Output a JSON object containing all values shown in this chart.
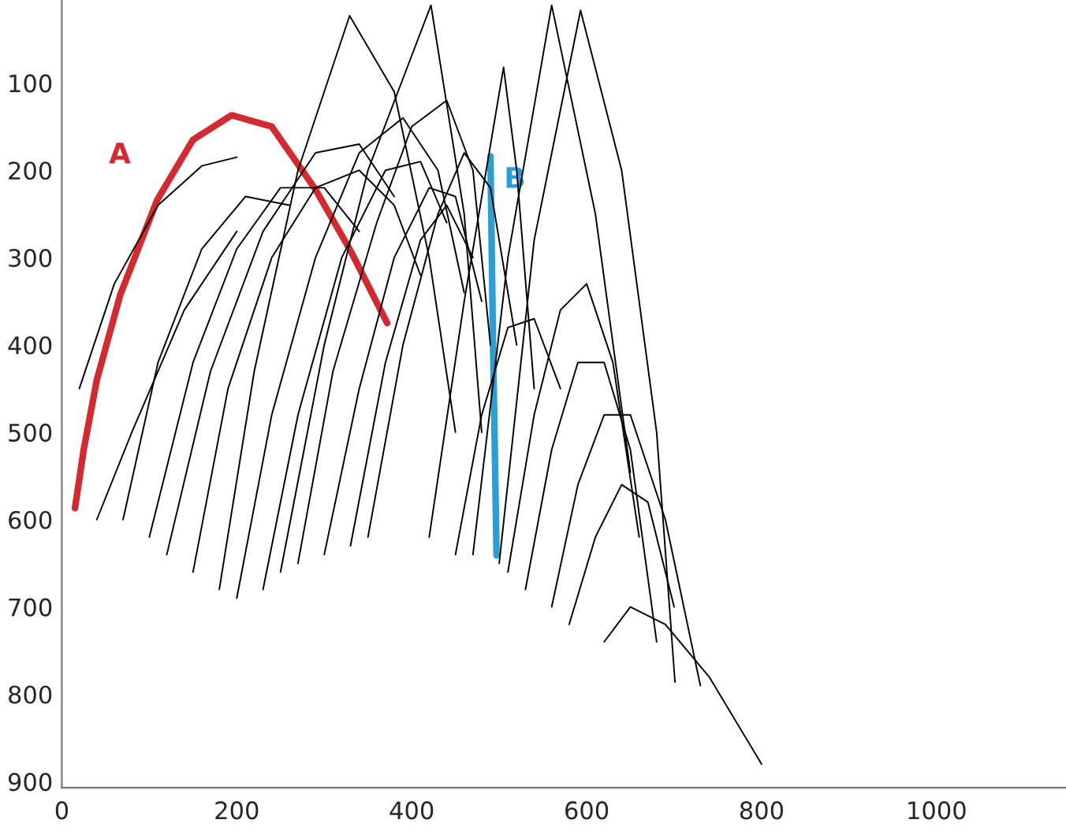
{
  "chart_data": {
    "type": "line",
    "color": "#000000",
    "xlim": [
      0,
      1148
    ],
    "ylim": [
      907,
      5
    ],
    "xticks": [
      0,
      200,
      400,
      600,
      800,
      1000
    ],
    "yticks": [
      100,
      200,
      300,
      400,
      500,
      600,
      700,
      800,
      900
    ],
    "annotations": [
      {
        "text": "A",
        "x": 109,
        "y": 234
      },
      {
        "text": "B",
        "x": 493,
        "y": 262
      }
    ],
    "series": [
      {
        "color": "#d42a2f",
        "x": [
          15,
          25,
          40,
          67,
          109,
          150,
          194,
          240,
          290,
          330,
          372
        ],
        "values": [
          587,
          520,
          440,
          342,
          234,
          165,
          137,
          150,
          222,
          292,
          375
        ]
      },
      {
        "color": "#2a9fd6",
        "x": [
          490,
          493,
          497
        ],
        "values": [
          184,
          400,
          641
        ]
      },
      {
        "x": [
          70,
          110,
          160,
          210,
          260
        ],
        "values": [
          600,
          420,
          290,
          230,
          240
        ]
      },
      {
        "x": [
          20,
          60,
          110,
          160,
          200
        ],
        "values": [
          450,
          330,
          240,
          195,
          185
        ]
      },
      {
        "x": [
          100,
          150,
          200,
          250,
          300,
          340
        ],
        "values": [
          620,
          420,
          290,
          220,
          220,
          270
        ]
      },
      {
        "x": [
          150,
          190,
          240,
          290,
          340,
          380,
          410
        ],
        "values": [
          660,
          450,
          300,
          220,
          200,
          240,
          320
        ]
      },
      {
        "x": [
          180,
          220,
          270,
          329,
          380,
          420,
          450
        ],
        "values": [
          680,
          430,
          200,
          23,
          110,
          300,
          500
        ]
      },
      {
        "x": [
          200,
          240,
          290,
          340,
          390,
          430,
          460
        ],
        "values": [
          690,
          480,
          300,
          180,
          140,
          200,
          340
        ]
      },
      {
        "x": [
          230,
          270,
          320,
          370,
          410,
          440
        ],
        "values": [
          680,
          480,
          300,
          200,
          190,
          260
        ]
      },
      {
        "x": [
          250,
          300,
          350,
          422,
          460,
          480
        ],
        "values": [
          660,
          400,
          200,
          11,
          250,
          500
        ]
      },
      {
        "x": [
          270,
          310,
          360,
          400,
          440,
          470,
          490
        ],
        "values": [
          650,
          430,
          260,
          150,
          120,
          200,
          400
        ]
      },
      {
        "x": [
          300,
          340,
          380,
          420,
          450,
          480
        ],
        "values": [
          640,
          450,
          300,
          220,
          230,
          350
        ]
      },
      {
        "x": [
          120,
          170,
          230,
          290,
          340,
          380
        ],
        "values": [
          640,
          430,
          270,
          180,
          170,
          230
        ]
      },
      {
        "x": [
          330,
          370,
          410,
          440,
          470
        ],
        "values": [
          630,
          420,
          280,
          240,
          300
        ]
      },
      {
        "x": [
          350,
          390,
          430,
          460,
          490,
          520
        ],
        "values": [
          620,
          400,
          250,
          180,
          220,
          400
        ]
      },
      {
        "x": [
          420,
          460,
          505,
          520,
          540
        ],
        "values": [
          620,
          350,
          82,
          200,
          450
        ]
      },
      {
        "x": [
          470,
          510,
          560,
          610,
          650
        ],
        "values": [
          640,
          300,
          11,
          250,
          546
        ]
      },
      {
        "x": [
          500,
          540,
          593,
          640,
          680,
          701
        ],
        "values": [
          650,
          280,
          17,
          200,
          500,
          786
        ]
      },
      {
        "x": [
          510,
          540,
          570,
          600,
          630,
          660
        ],
        "values": [
          660,
          480,
          360,
          330,
          420,
          620
        ]
      },
      {
        "x": [
          530,
          560,
          590,
          620,
          650,
          680
        ],
        "values": [
          680,
          520,
          420,
          420,
          520,
          740
        ]
      },
      {
        "x": [
          560,
          590,
          620,
          650,
          690,
          730
        ],
        "values": [
          700,
          560,
          480,
          480,
          600,
          790
        ]
      },
      {
        "x": [
          580,
          610,
          640,
          670,
          700
        ],
        "values": [
          720,
          620,
          560,
          580,
          700
        ]
      },
      {
        "x": [
          620,
          650,
          690,
          740,
          800
        ],
        "values": [
          740,
          700,
          720,
          780,
          880
        ]
      },
      {
        "x": [
          40,
          80,
          140,
          200
        ],
        "values": [
          600,
          500,
          360,
          270
        ]
      },
      {
        "x": [
          450,
          480,
          510,
          540,
          570
        ],
        "values": [
          640,
          480,
          380,
          370,
          450
        ]
      }
    ]
  }
}
